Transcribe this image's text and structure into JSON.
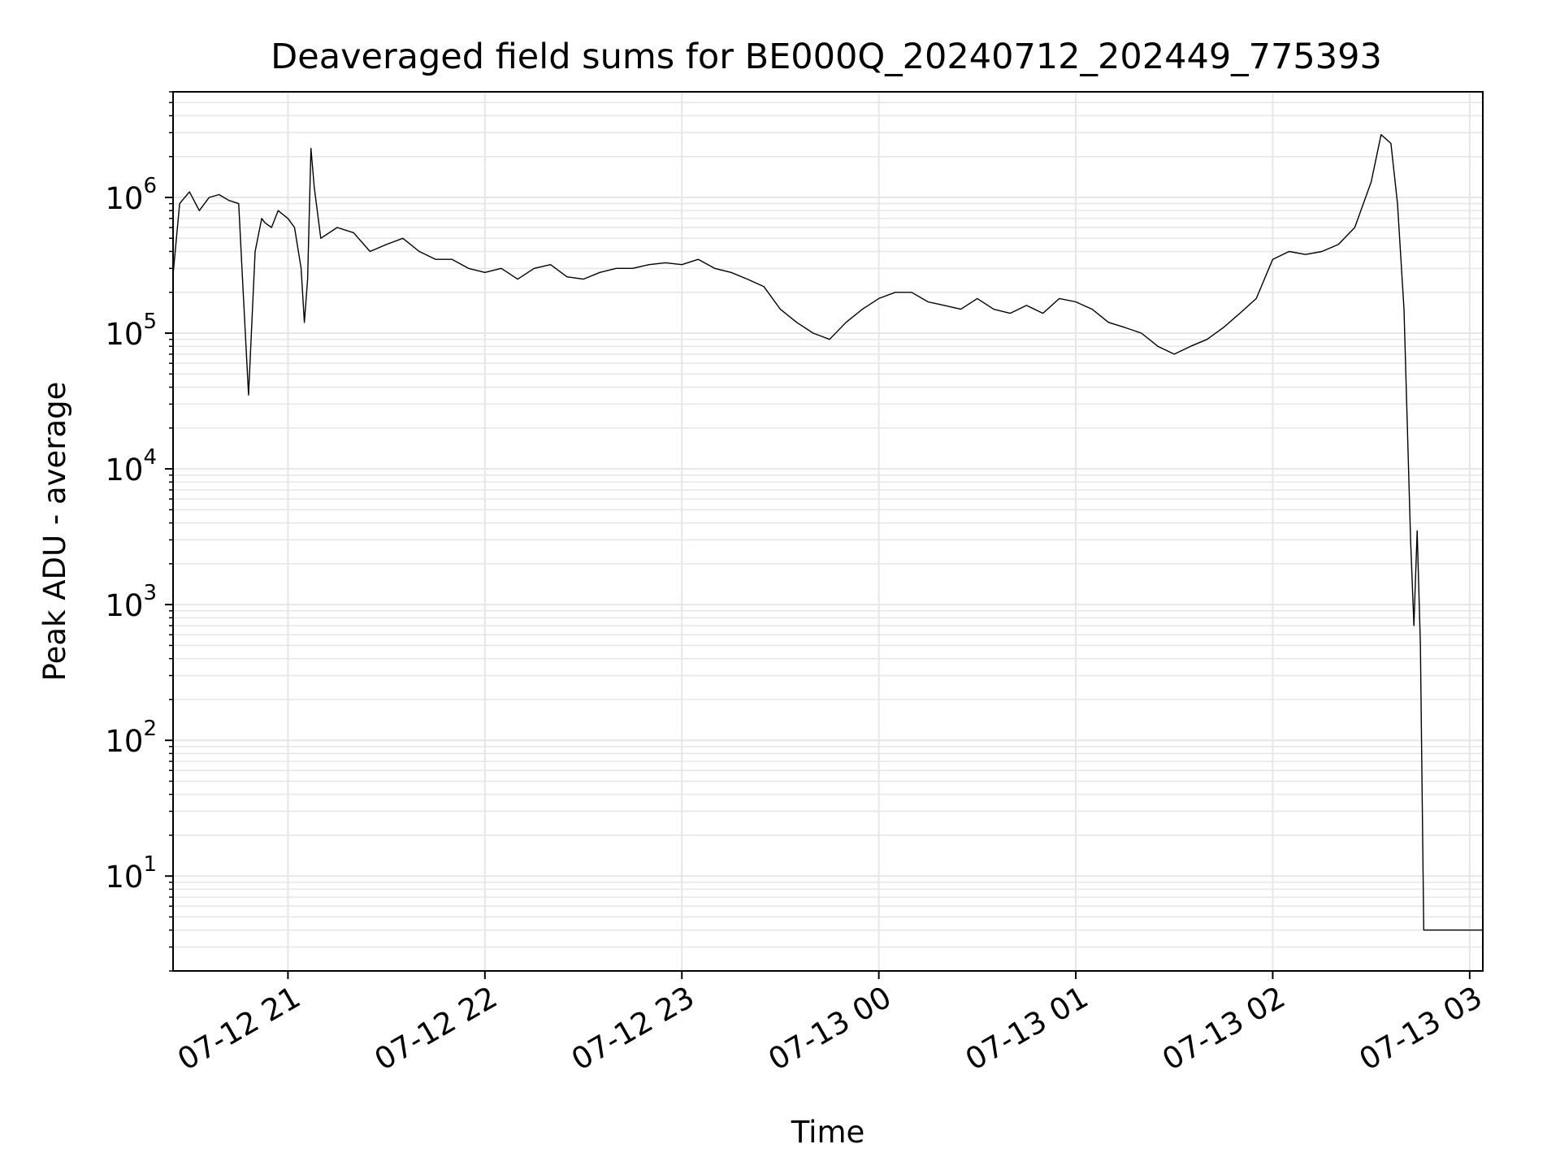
{
  "chart_data": {
    "type": "line",
    "title": "Deaveraged field sums for BE000Q_20240712_202449_775393",
    "xlabel": "Time",
    "ylabel": "Peak ADU - average",
    "yscale": "log",
    "xlim": [
      "2024-07-12 20:25",
      "2024-07-13 03:04"
    ],
    "ylim": [
      2,
      6000000
    ],
    "grid": true,
    "line_color": "#000000",
    "grid_color": "#e6e6e6",
    "x_ticks": [
      {
        "value": "2024-07-12 21:00",
        "label": "07-12 21"
      },
      {
        "value": "2024-07-12 22:00",
        "label": "07-12 22"
      },
      {
        "value": "2024-07-12 23:00",
        "label": "07-12 23"
      },
      {
        "value": "2024-07-13 00:00",
        "label": "07-13 00"
      },
      {
        "value": "2024-07-13 01:00",
        "label": "07-13 01"
      },
      {
        "value": "2024-07-13 02:00",
        "label": "07-13 02"
      },
      {
        "value": "2024-07-13 03:00",
        "label": "07-13 03"
      }
    ],
    "y_ticks": [
      {
        "value": 10,
        "base": "10",
        "exp": "1"
      },
      {
        "value": 100,
        "base": "10",
        "exp": "2"
      },
      {
        "value": 1000,
        "base": "10",
        "exp": "3"
      },
      {
        "value": 10000,
        "base": "10",
        "exp": "4"
      },
      {
        "value": 100000,
        "base": "10",
        "exp": "5"
      },
      {
        "value": 1000000,
        "base": "10",
        "exp": "6"
      }
    ],
    "series": [
      {
        "x": [
          "2024-07-12 20:25",
          "2024-07-12 20:27",
          "2024-07-12 20:30",
          "2024-07-12 20:33",
          "2024-07-12 20:36",
          "2024-07-12 20:39",
          "2024-07-12 20:42",
          "2024-07-12 20:45",
          "2024-07-12 20:46",
          "2024-07-12 20:48",
          "2024-07-12 20:50",
          "2024-07-12 20:52",
          "2024-07-12 20:53",
          "2024-07-12 20:55",
          "2024-07-12 20:57",
          "2024-07-12 21:00",
          "2024-07-12 21:02",
          "2024-07-12 21:04",
          "2024-07-12 21:05",
          "2024-07-12 21:06",
          "2024-07-12 21:07",
          "2024-07-12 21:08",
          "2024-07-12 21:10",
          "2024-07-12 21:15",
          "2024-07-12 21:20",
          "2024-07-12 21:25",
          "2024-07-12 21:30",
          "2024-07-12 21:35",
          "2024-07-12 21:40",
          "2024-07-12 21:45",
          "2024-07-12 21:50",
          "2024-07-12 21:55",
          "2024-07-12 22:00",
          "2024-07-12 22:05",
          "2024-07-12 22:10",
          "2024-07-12 22:15",
          "2024-07-12 22:20",
          "2024-07-12 22:25",
          "2024-07-12 22:30",
          "2024-07-12 22:35",
          "2024-07-12 22:40",
          "2024-07-12 22:45",
          "2024-07-12 22:50",
          "2024-07-12 22:55",
          "2024-07-12 23:00",
          "2024-07-12 23:05",
          "2024-07-12 23:10",
          "2024-07-12 23:15",
          "2024-07-12 23:20",
          "2024-07-12 23:25",
          "2024-07-12 23:30",
          "2024-07-12 23:35",
          "2024-07-12 23:40",
          "2024-07-12 23:45",
          "2024-07-12 23:50",
          "2024-07-12 23:55",
          "2024-07-13 00:00",
          "2024-07-13 00:05",
          "2024-07-13 00:10",
          "2024-07-13 00:15",
          "2024-07-13 00:20",
          "2024-07-13 00:25",
          "2024-07-13 00:30",
          "2024-07-13 00:35",
          "2024-07-13 00:40",
          "2024-07-13 00:45",
          "2024-07-13 00:50",
          "2024-07-13 00:55",
          "2024-07-13 01:00",
          "2024-07-13 01:05",
          "2024-07-13 01:10",
          "2024-07-13 01:15",
          "2024-07-13 01:20",
          "2024-07-13 01:25",
          "2024-07-13 01:30",
          "2024-07-13 01:35",
          "2024-07-13 01:40",
          "2024-07-13 01:45",
          "2024-07-13 01:50",
          "2024-07-13 01:55",
          "2024-07-13 02:00",
          "2024-07-13 02:05",
          "2024-07-13 02:10",
          "2024-07-13 02:15",
          "2024-07-13 02:20",
          "2024-07-13 02:25",
          "2024-07-13 02:30",
          "2024-07-13 02:33",
          "2024-07-13 02:36",
          "2024-07-13 02:38",
          "2024-07-13 02:40",
          "2024-07-13 02:42",
          "2024-07-13 02:43",
          "2024-07-13 02:44",
          "2024-07-13 02:45",
          "2024-07-13 02:46",
          "2024-07-13 02:50",
          "2024-07-13 02:55",
          "2024-07-13 03:00",
          "2024-07-13 03:04"
        ],
        "y": [
          270000,
          900000,
          1100000,
          800000,
          1000000,
          1050000,
          950000,
          900000,
          300000,
          35000,
          400000,
          700000,
          650000,
          600000,
          800000,
          700000,
          600000,
          300000,
          120000,
          250000,
          2300000,
          1200000,
          500000,
          600000,
          550000,
          400000,
          450000,
          500000,
          400000,
          350000,
          350000,
          300000,
          280000,
          300000,
          250000,
          300000,
          320000,
          260000,
          250000,
          280000,
          300000,
          300000,
          320000,
          330000,
          320000,
          350000,
          300000,
          280000,
          250000,
          220000,
          150000,
          120000,
          100000,
          90000,
          120000,
          150000,
          180000,
          200000,
          200000,
          170000,
          160000,
          150000,
          180000,
          150000,
          140000,
          160000,
          140000,
          180000,
          170000,
          150000,
          120000,
          110000,
          100000,
          80000,
          70000,
          80000,
          90000,
          110000,
          140000,
          180000,
          350000,
          400000,
          380000,
          400000,
          450000,
          600000,
          1300000,
          2900000,
          2500000,
          900000,
          150000,
          3000,
          700,
          3500,
          500,
          4,
          4,
          4,
          4,
          4
        ]
      }
    ]
  }
}
